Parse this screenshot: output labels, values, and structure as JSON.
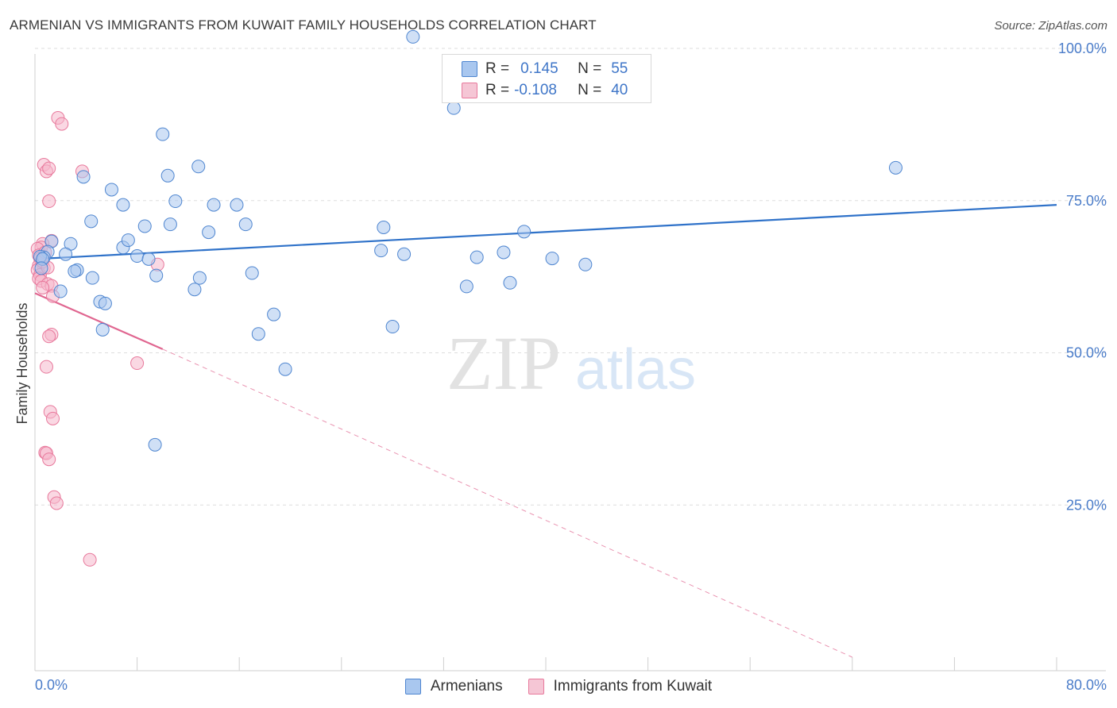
{
  "header": {
    "title": "ARMENIAN VS IMMIGRANTS FROM KUWAIT FAMILY HOUSEHOLDS CORRELATION CHART",
    "source": "Source: ZipAtlas.com"
  },
  "legend_top": {
    "rows": [
      {
        "r_label": "R =",
        "r_value": "0.145",
        "n_label": "N =",
        "n_value": "55"
      },
      {
        "r_label": "R =",
        "r_value": "-0.108",
        "n_label": "N =",
        "n_value": "40"
      }
    ]
  },
  "watermark": {
    "zip": "ZIP",
    "atlas": "atlas"
  },
  "colors": {
    "blue_fill": "#a9c7ef",
    "blue_stroke": "#4f86d0",
    "blue_line": "#2f72c9",
    "pink_fill": "#f5b8cc",
    "pink_stroke": "#e8799c",
    "pink_line": "#e06690",
    "axis_text": "#4a7cc9",
    "grid": "#dddddd"
  },
  "chart_data": {
    "type": "scatter",
    "title": "ARMENIAN VS IMMIGRANTS FROM KUWAIT FAMILY HOUSEHOLDS CORRELATION CHART",
    "xlabel": "",
    "ylabel": "Family Households",
    "xlim": [
      0,
      80
    ],
    "ylim": [
      0,
      100
    ],
    "x_tick_labels": [
      "0.0%",
      "80.0%"
    ],
    "y_tick_labels": [
      "100.0%",
      "75.0%",
      "50.0%",
      "25.0%"
    ],
    "y_ticks": [
      100,
      75,
      50,
      25
    ],
    "grid": true,
    "legend": "bottom-center",
    "series": [
      {
        "name": "Armenians",
        "color": "blue",
        "r": 0.145,
        "n": 55,
        "trend": {
          "x0": 0,
          "y0": 65.4,
          "x1": 80,
          "y1": 74.3
        },
        "points": [
          [
            29.6,
            101.9
          ],
          [
            32.8,
            90.2
          ],
          [
            10.0,
            85.9
          ],
          [
            67.4,
            80.4
          ],
          [
            12.8,
            80.6
          ],
          [
            3.8,
            78.9
          ],
          [
            10.4,
            79.1
          ],
          [
            6.0,
            76.8
          ],
          [
            11.0,
            74.9
          ],
          [
            6.9,
            74.3
          ],
          [
            14.0,
            74.3
          ],
          [
            15.8,
            74.3
          ],
          [
            4.4,
            71.6
          ],
          [
            8.6,
            70.8
          ],
          [
            10.6,
            71.1
          ],
          [
            16.5,
            71.1
          ],
          [
            13.6,
            69.8
          ],
          [
            27.3,
            70.6
          ],
          [
            38.3,
            69.9
          ],
          [
            1.3,
            68.3
          ],
          [
            2.8,
            67.9
          ],
          [
            6.9,
            67.3
          ],
          [
            7.3,
            68.5
          ],
          [
            27.1,
            66.8
          ],
          [
            1.0,
            66.6
          ],
          [
            0.7,
            65.7
          ],
          [
            2.4,
            66.2
          ],
          [
            28.9,
            66.2
          ],
          [
            34.6,
            65.7
          ],
          [
            36.7,
            66.5
          ],
          [
            40.5,
            65.5
          ],
          [
            0.4,
            65.8
          ],
          [
            0.6,
            65.4
          ],
          [
            8.0,
            65.9
          ],
          [
            8.9,
            65.4
          ],
          [
            43.1,
            64.5
          ],
          [
            3.3,
            63.6
          ],
          [
            3.1,
            63.4
          ],
          [
            9.5,
            62.7
          ],
          [
            12.9,
            62.3
          ],
          [
            17.0,
            63.1
          ],
          [
            4.5,
            62.3
          ],
          [
            12.5,
            60.4
          ],
          [
            2.0,
            60.1
          ],
          [
            33.8,
            60.9
          ],
          [
            37.2,
            61.5
          ],
          [
            5.1,
            58.4
          ],
          [
            5.5,
            58.1
          ],
          [
            18.7,
            56.3
          ],
          [
            5.3,
            53.8
          ],
          [
            28.0,
            54.3
          ],
          [
            17.5,
            53.1
          ],
          [
            19.6,
            47.3
          ],
          [
            9.4,
            34.9
          ],
          [
            0.5,
            63.9
          ]
        ]
      },
      {
        "name": "Immigrants from Kuwait",
        "color": "pink",
        "r": -0.108,
        "n": 40,
        "trend": {
          "x0": 0,
          "y0": 59.8,
          "x1": 10.0,
          "y1": 50.6
        },
        "trend_extrapolated": {
          "x0": 10.0,
          "y0": 50.6,
          "x1": 64.0,
          "y1": 0
        },
        "points": [
          [
            1.8,
            88.6
          ],
          [
            2.1,
            87.6
          ],
          [
            0.7,
            80.9
          ],
          [
            0.9,
            79.8
          ],
          [
            1.1,
            80.3
          ],
          [
            3.7,
            79.8
          ],
          [
            1.1,
            74.9
          ],
          [
            1.3,
            68.4
          ],
          [
            0.6,
            67.9
          ],
          [
            0.5,
            67.3
          ],
          [
            0.2,
            67.1
          ],
          [
            0.3,
            66.0
          ],
          [
            0.4,
            65.5
          ],
          [
            0.5,
            64.8
          ],
          [
            9.6,
            64.5
          ],
          [
            0.3,
            64.3
          ],
          [
            0.7,
            63.9
          ],
          [
            0.2,
            63.6
          ],
          [
            0.4,
            62.8
          ],
          [
            0.3,
            62.2
          ],
          [
            0.5,
            61.8
          ],
          [
            1.0,
            61.3
          ],
          [
            1.3,
            61.0
          ],
          [
            0.6,
            60.7
          ],
          [
            1.4,
            59.3
          ],
          [
            1.3,
            53.0
          ],
          [
            1.1,
            52.7
          ],
          [
            8.0,
            48.3
          ],
          [
            0.9,
            47.7
          ],
          [
            1.2,
            40.3
          ],
          [
            1.4,
            39.2
          ],
          [
            0.8,
            33.6
          ],
          [
            0.9,
            33.5
          ],
          [
            1.1,
            32.5
          ],
          [
            1.5,
            26.3
          ],
          [
            1.7,
            25.3
          ],
          [
            4.3,
            16.0
          ],
          [
            0.6,
            65.0
          ],
          [
            0.8,
            66.5
          ],
          [
            1.0,
            64.0
          ]
        ]
      }
    ]
  },
  "legend_bottom": {
    "items": [
      {
        "label": "Armenians"
      },
      {
        "label": "Immigrants from Kuwait"
      }
    ]
  }
}
